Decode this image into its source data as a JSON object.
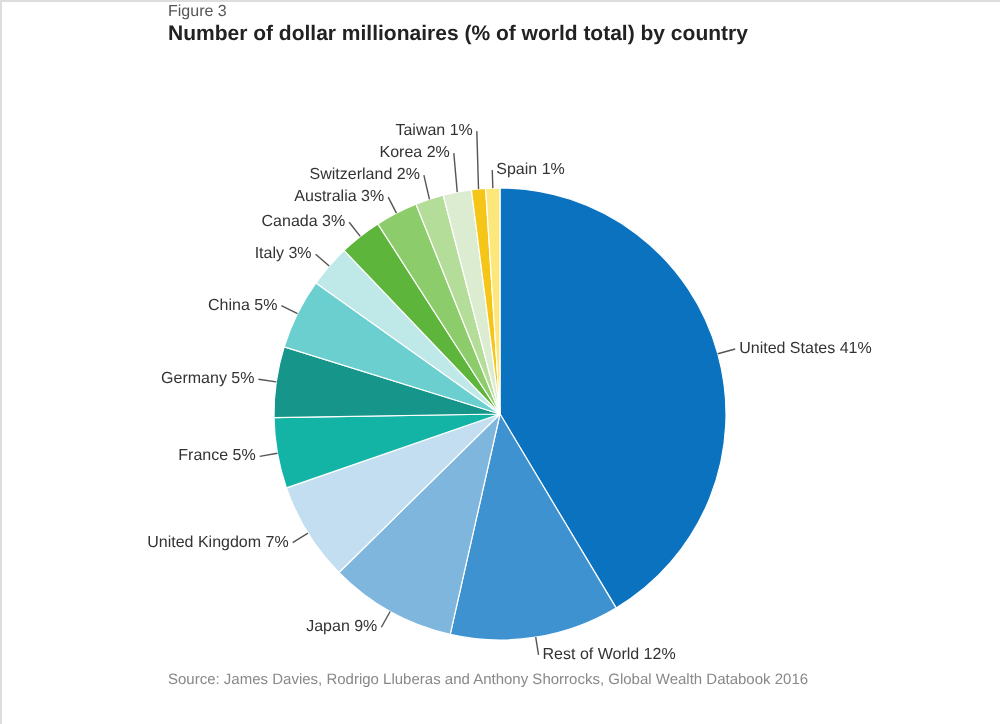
{
  "chart_data": {
    "type": "pie",
    "title": "Number of dollar millionaires (% of world total) by country",
    "subtitle": "Figure 3",
    "categories": [
      "United States",
      "Rest of World",
      "Japan",
      "United Kingdom",
      "France",
      "Germany",
      "China",
      "Italy",
      "Canada",
      "Australia",
      "Switzerland",
      "Korea",
      "Taiwan",
      "Spain"
    ],
    "values": [
      41,
      12,
      9,
      7,
      5,
      5,
      5,
      3,
      3,
      3,
      2,
      2,
      1,
      1
    ],
    "value_labels": [
      "41%",
      "12%",
      "9%",
      "7%",
      "5%",
      "5%",
      "5%",
      "3%",
      "3%",
      "3%",
      "2%",
      "2%",
      "1%",
      "1%"
    ],
    "colors": [
      "#0a72bf",
      "#3d92cf",
      "#7fb6dd",
      "#c3def0",
      "#13b4a6",
      "#16958a",
      "#6ccfcf",
      "#bfe9e8",
      "#5db53b",
      "#8ccc6a",
      "#b5dd9a",
      "#dcecd0",
      "#f5c518",
      "#fbe77a"
    ],
    "annotations": [
      "Source: James Davies, Rodrigo Lluberas and Anthony Shorrocks, Global Wealth Databook 2016"
    ]
  }
}
